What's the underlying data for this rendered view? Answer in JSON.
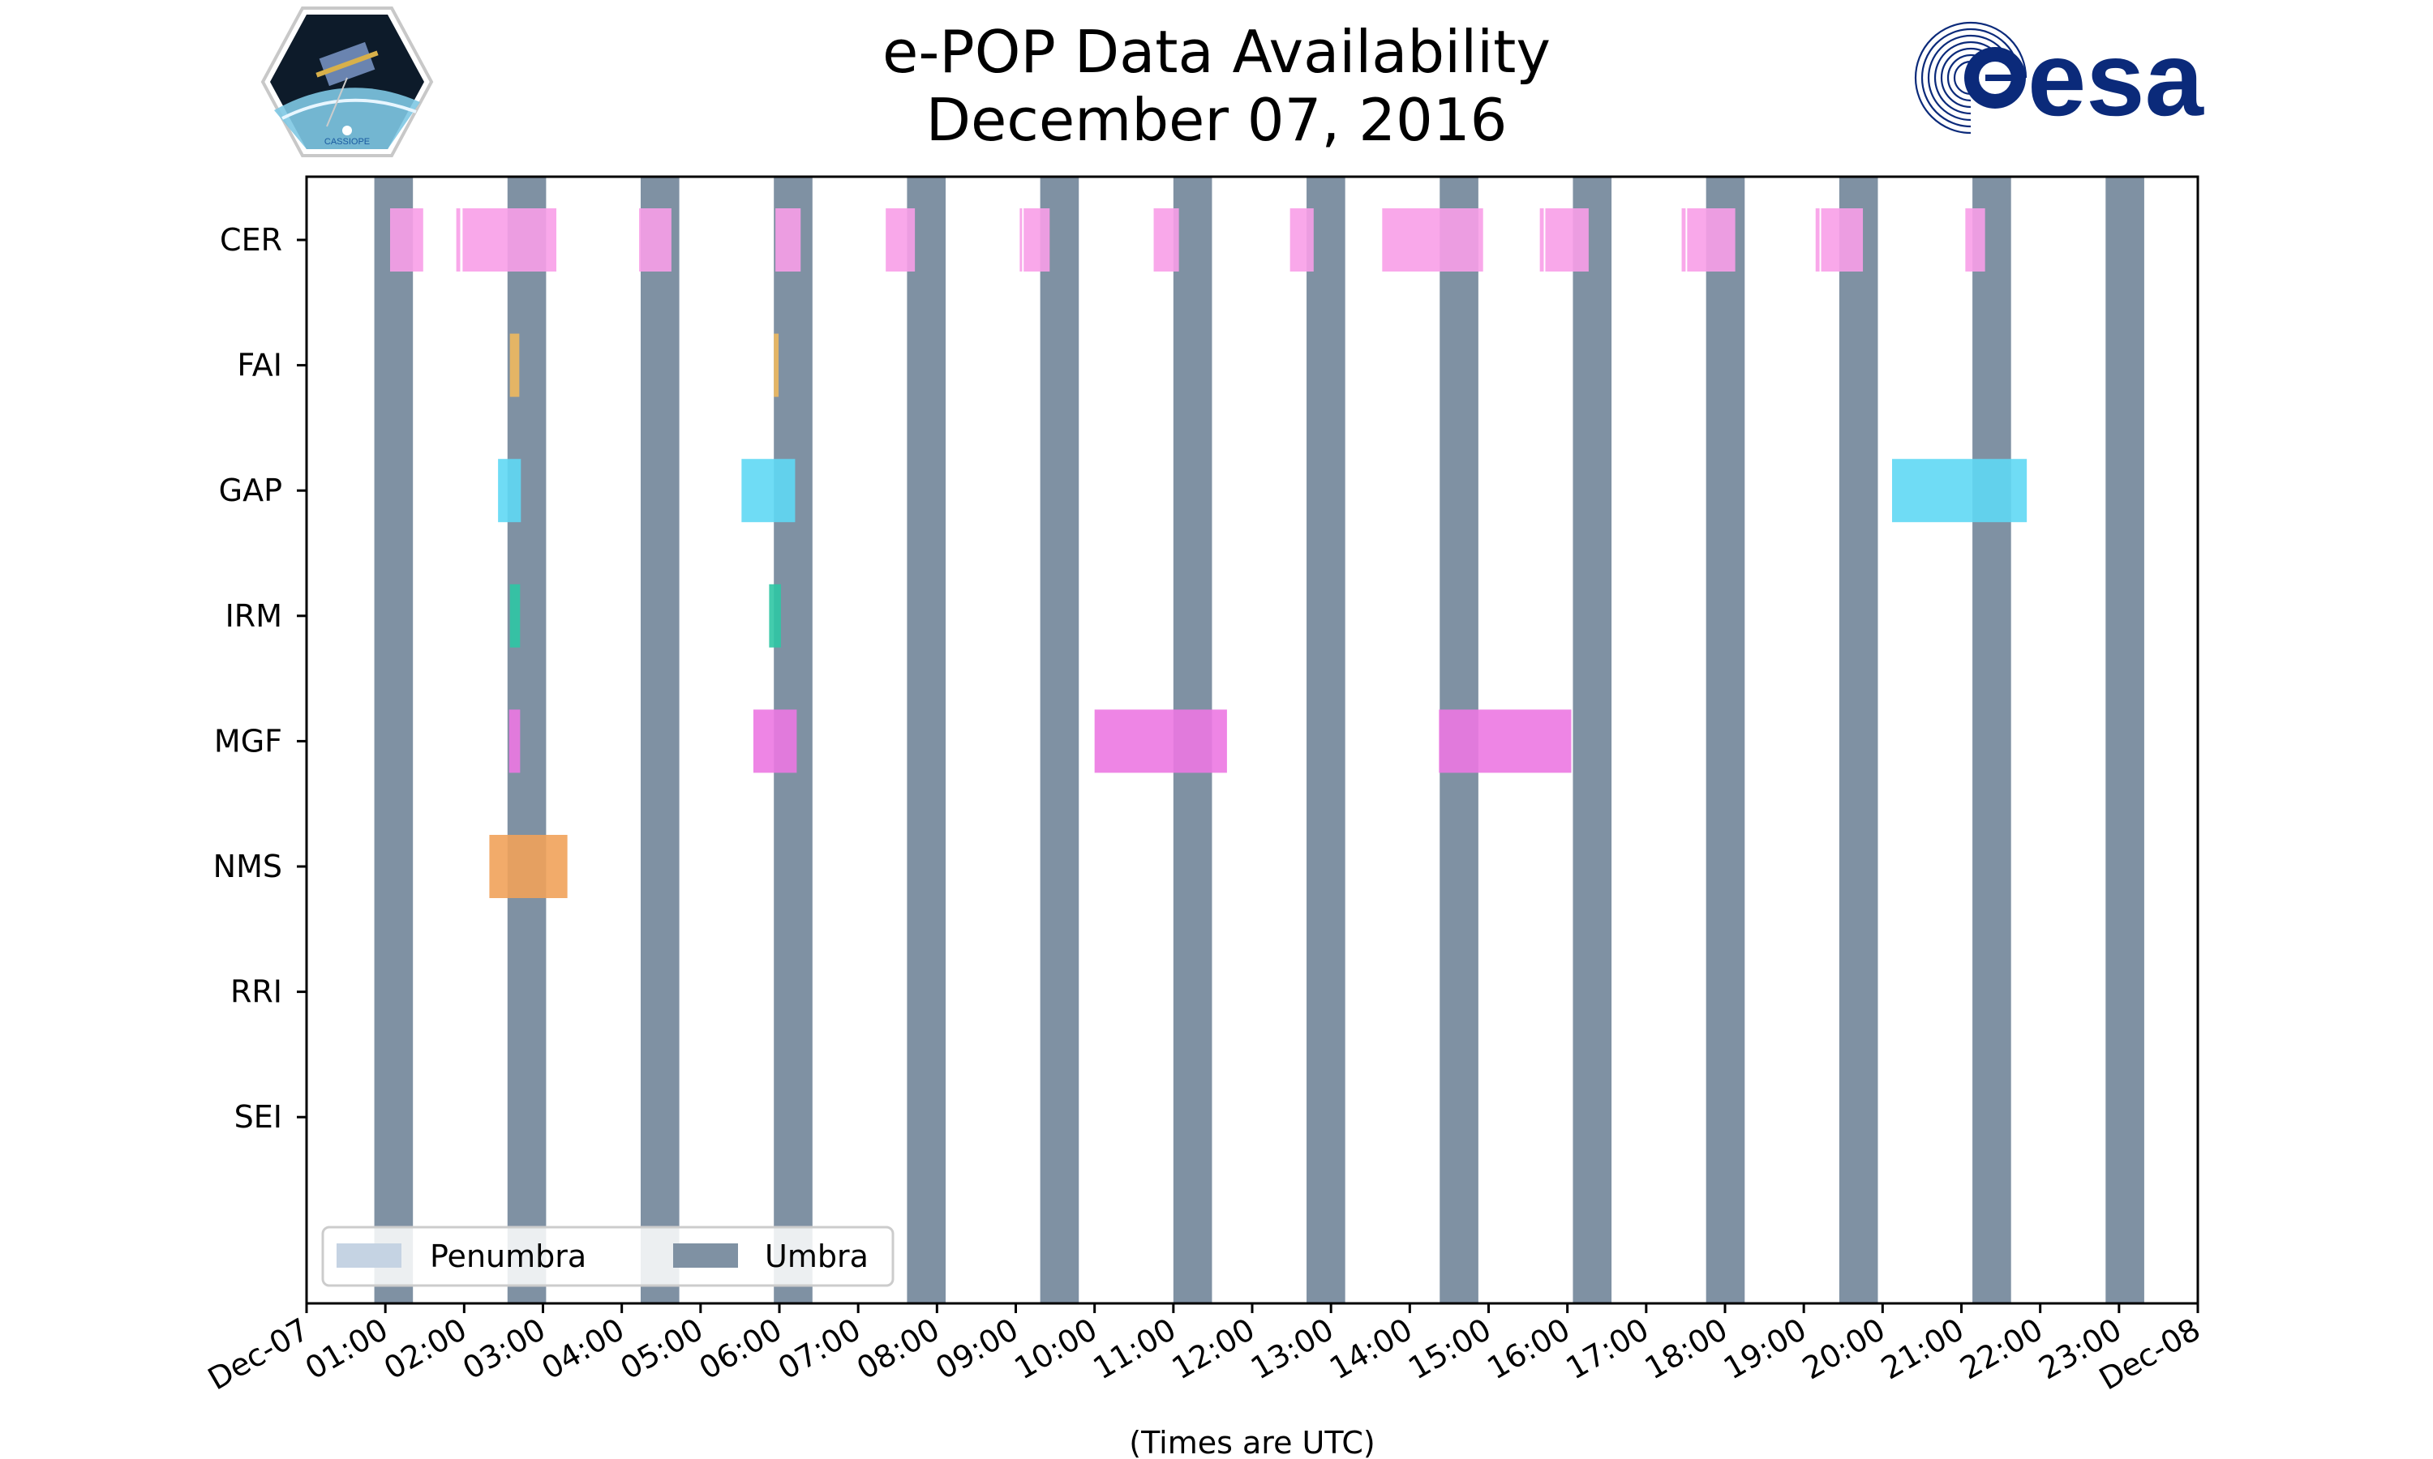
{
  "chart_data": {
    "type": "timeline",
    "title": [
      "e-POP Data Availability",
      "December 07, 2016"
    ],
    "xlabel": "(Times are UTC)",
    "x_unit": "hours",
    "xlim": [
      0,
      24
    ],
    "x_ticks": [
      {
        "value": 0,
        "label": "Dec-07"
      },
      {
        "value": 1,
        "label": "01:00"
      },
      {
        "value": 2,
        "label": "02:00"
      },
      {
        "value": 3,
        "label": "03:00"
      },
      {
        "value": 4,
        "label": "04:00"
      },
      {
        "value": 5,
        "label": "05:00"
      },
      {
        "value": 6,
        "label": "06:00"
      },
      {
        "value": 7,
        "label": "07:00"
      },
      {
        "value": 8,
        "label": "08:00"
      },
      {
        "value": 9,
        "label": "09:00"
      },
      {
        "value": 10,
        "label": "10:00"
      },
      {
        "value": 11,
        "label": "11:00"
      },
      {
        "value": 12,
        "label": "12:00"
      },
      {
        "value": 13,
        "label": "13:00"
      },
      {
        "value": 14,
        "label": "14:00"
      },
      {
        "value": 15,
        "label": "15:00"
      },
      {
        "value": 16,
        "label": "16:00"
      },
      {
        "value": 17,
        "label": "17:00"
      },
      {
        "value": 18,
        "label": "18:00"
      },
      {
        "value": 19,
        "label": "19:00"
      },
      {
        "value": 20,
        "label": "20:00"
      },
      {
        "value": 21,
        "label": "21:00"
      },
      {
        "value": 22,
        "label": "22:00"
      },
      {
        "value": 23,
        "label": "23:00"
      },
      {
        "value": 24,
        "label": "Dec-08"
      }
    ],
    "categories": [
      "CER",
      "FAI",
      "GAP",
      "IRM",
      "MGF",
      "NMS",
      "RRI",
      "SEI"
    ],
    "legend": {
      "position": "lower-left",
      "entries": [
        {
          "label": "Penumbra",
          "color": "#c5d3e3"
        },
        {
          "label": "Umbra",
          "color": "#7f91a3"
        }
      ]
    },
    "umbra": {
      "color": "#7f91a3",
      "intervals": [
        [
          0.86,
          1.35
        ],
        [
          2.55,
          3.04
        ],
        [
          4.24,
          4.73
        ],
        [
          5.93,
          6.42
        ],
        [
          7.62,
          8.11
        ],
        [
          9.31,
          9.8
        ],
        [
          11.0,
          11.49
        ],
        [
          12.69,
          13.18
        ],
        [
          14.38,
          14.87
        ],
        [
          16.07,
          16.56
        ],
        [
          17.76,
          18.25
        ],
        [
          19.45,
          19.94
        ],
        [
          21.14,
          21.63
        ],
        [
          22.83,
          23.32
        ]
      ]
    },
    "series": [
      {
        "name": "CER",
        "color": "#f89ee8",
        "intervals": [
          [
            1.06,
            1.48
          ],
          [
            1.9,
            1.95
          ],
          [
            1.98,
            3.17
          ],
          [
            4.22,
            4.63
          ],
          [
            5.95,
            6.27
          ],
          [
            7.35,
            7.72
          ],
          [
            9.05,
            9.08
          ],
          [
            9.1,
            9.43
          ],
          [
            10.75,
            11.07
          ],
          [
            12.48,
            12.78
          ],
          [
            13.65,
            14.93
          ],
          [
            15.65,
            15.7
          ],
          [
            15.72,
            16.27
          ],
          [
            17.45,
            17.5
          ],
          [
            17.52,
            18.13
          ],
          [
            19.15,
            19.2
          ],
          [
            19.22,
            19.75
          ],
          [
            21.05,
            21.3
          ]
        ]
      },
      {
        "name": "FAI",
        "color": "#f0b95e",
        "intervals": [
          [
            2.58,
            2.7
          ],
          [
            5.93,
            5.99
          ]
        ]
      },
      {
        "name": "GAP",
        "color": "#5fd8f4",
        "intervals": [
          [
            2.43,
            2.72
          ],
          [
            5.52,
            6.2
          ],
          [
            20.12,
            21.83
          ]
        ]
      },
      {
        "name": "IRM",
        "color": "#2fc7a4",
        "intervals": [
          [
            2.58,
            2.71
          ],
          [
            5.87,
            6.02
          ]
        ]
      },
      {
        "name": "MGF",
        "color": "#ec78e2",
        "intervals": [
          [
            2.57,
            2.71
          ],
          [
            5.67,
            6.22
          ],
          [
            10.0,
            11.68
          ],
          [
            14.37,
            16.05
          ]
        ]
      },
      {
        "name": "NMS",
        "color": "#f1a25a",
        "intervals": [
          [
            2.32,
            3.31
          ]
        ]
      },
      {
        "name": "RRI",
        "color": "#a6a6a6",
        "intervals": []
      },
      {
        "name": "SEI",
        "color": "#a6a6a6",
        "intervals": []
      }
    ]
  },
  "logos": {
    "left": {
      "text": "CASSIOPE",
      "colors": {
        "frame": "#c8c8c8",
        "space": "#0d1b2a",
        "earth": "#7ec8e3"
      }
    },
    "right": {
      "text": "esa",
      "color": "#0b2a7a"
    }
  }
}
